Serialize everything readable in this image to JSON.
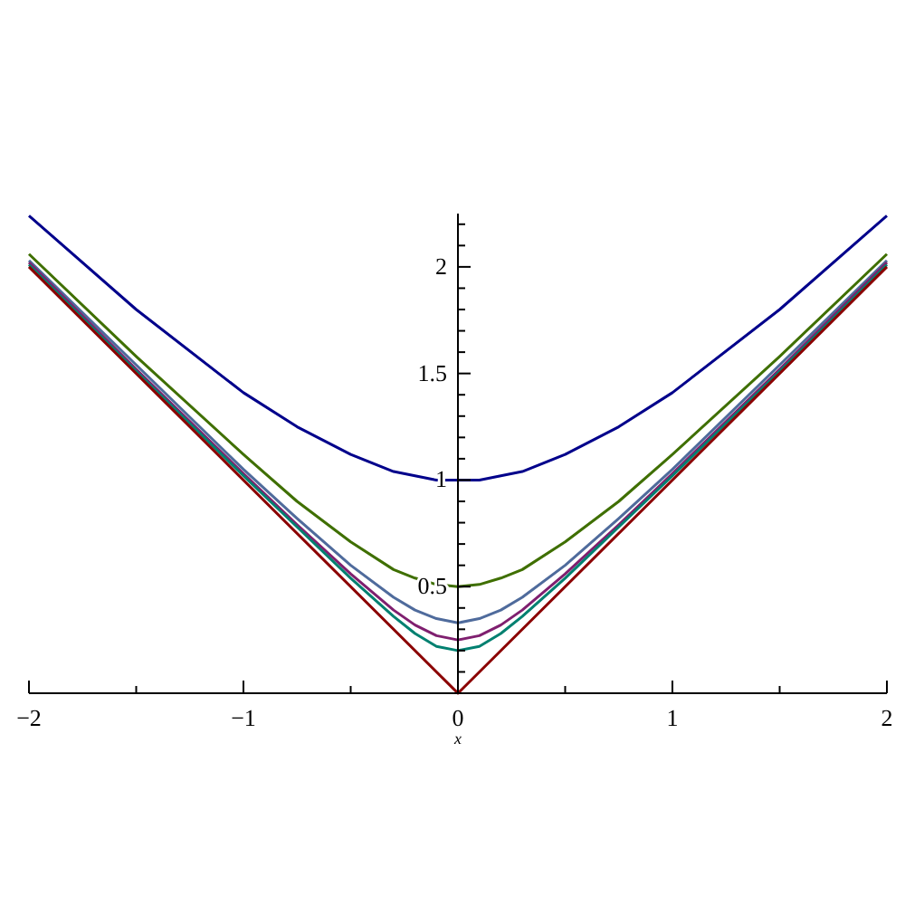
{
  "chart_data": {
    "type": "line",
    "xlabel": "x",
    "xlim": [
      -2,
      2
    ],
    "ylim": [
      0,
      2.25
    ],
    "xticks": [
      {
        "value": -2,
        "label": "−2"
      },
      {
        "value": -1.5,
        "label": null
      },
      {
        "value": -1,
        "label": "−1"
      },
      {
        "value": -0.5,
        "label": null
      },
      {
        "value": 0,
        "label": "0"
      },
      {
        "value": 0.5,
        "label": null
      },
      {
        "value": 1,
        "label": "1"
      },
      {
        "value": 1.5,
        "label": null
      },
      {
        "value": 2,
        "label": "2"
      }
    ],
    "yticks": [
      {
        "value": 0.1,
        "label": null
      },
      {
        "value": 0.2,
        "label": null
      },
      {
        "value": 0.3,
        "label": null
      },
      {
        "value": 0.4,
        "label": null
      },
      0.5,
      {
        "value": 0.6,
        "label": null
      },
      {
        "value": 0.7,
        "label": null
      },
      {
        "value": 0.8,
        "label": null
      },
      {
        "value": 0.9,
        "label": null
      },
      1,
      {
        "value": 1.1,
        "label": null
      },
      {
        "value": 1.2,
        "label": null
      },
      {
        "value": 1.3,
        "label": null
      },
      {
        "value": 1.4,
        "label": null
      },
      1.5,
      {
        "value": 1.6,
        "label": null
      },
      {
        "value": 1.7,
        "label": null
      },
      {
        "value": 1.8,
        "label": null
      },
      {
        "value": 1.9,
        "label": null
      },
      2,
      {
        "value": 2.1,
        "label": null
      },
      {
        "value": 2.2,
        "label": null
      }
    ],
    "x": [
      -2,
      -1.5,
      -1,
      -0.75,
      -0.5,
      -0.3,
      -0.2,
      -0.1,
      0,
      0.1,
      0.2,
      0.3,
      0.5,
      0.75,
      1,
      1.5,
      2
    ],
    "grid": false,
    "series": [
      {
        "color": "#00008b",
        "values": [
          2.24,
          1.8,
          1.41,
          1.25,
          1.12,
          1.04,
          1.02,
          1.0,
          1.0,
          1.0,
          1.02,
          1.04,
          1.12,
          1.25,
          1.41,
          1.8,
          2.24
        ]
      },
      {
        "color": "#3f6f00",
        "values": [
          2.06,
          1.58,
          1.12,
          0.9,
          0.71,
          0.58,
          0.54,
          0.51,
          0.5,
          0.51,
          0.54,
          0.58,
          0.71,
          0.9,
          1.12,
          1.58,
          2.06
        ]
      },
      {
        "color": "#4f6b9c",
        "values": [
          2.03,
          1.54,
          1.05,
          0.82,
          0.6,
          0.45,
          0.39,
          0.35,
          0.33,
          0.35,
          0.39,
          0.45,
          0.6,
          0.82,
          1.05,
          1.54,
          2.03
        ]
      },
      {
        "color": "#7f1f6f",
        "values": [
          2.02,
          1.52,
          1.03,
          0.79,
          0.56,
          0.39,
          0.32,
          0.27,
          0.25,
          0.27,
          0.32,
          0.39,
          0.56,
          0.79,
          1.03,
          1.52,
          2.02
        ]
      },
      {
        "color": "#008070",
        "values": [
          2.01,
          1.51,
          1.02,
          0.78,
          0.54,
          0.36,
          0.28,
          0.22,
          0.2,
          0.22,
          0.28,
          0.36,
          0.54,
          0.78,
          1.02,
          1.51,
          2.01
        ]
      },
      {
        "color": "#8b0000",
        "x": [
          -2,
          0,
          2
        ],
        "values": [
          2,
          0,
          2
        ]
      }
    ]
  }
}
